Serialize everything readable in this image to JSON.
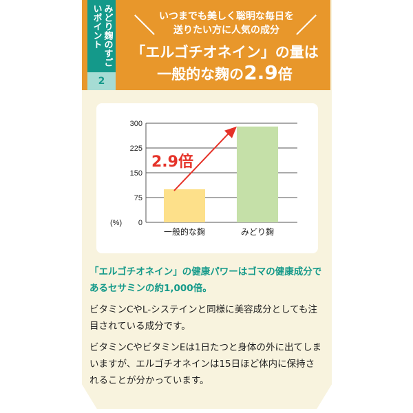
{
  "badge": {
    "label": "みどり麹のすごいポイント",
    "number": "2"
  },
  "header": {
    "subtitle_line1": "いつまでも美しく聡明な毎日を",
    "subtitle_line2": "送りたい方に人気の成分",
    "title_line1": "「エルゴチオネイン」の量は",
    "title_line2_prefix": "一般的な麹の",
    "title_line2_number": "2.9",
    "title_line2_suffix": "倍"
  },
  "chart_data": {
    "type": "bar",
    "categories": [
      "一般的な麹",
      "みどり麹"
    ],
    "values": [
      100,
      290
    ],
    "ylabel": "(%)",
    "ylim": [
      0,
      300
    ],
    "yticks": [
      "0",
      "75",
      "150",
      "225",
      "300"
    ],
    "annotation": "2.9倍",
    "colors": [
      "#fde08a",
      "#c5e0a8"
    ],
    "arrow_color": "#e53228",
    "grid": true
  },
  "body": {
    "lead": "「エルゴチオネイン」の健康パワーはゴマの健康成分であるセサミンの約1,000倍。",
    "p1": "ビタミンCやL-システインと同様に美容成分としても注目されている成分です。",
    "p2": "ビタミンCやビタミンEは1日たつと身体の外に出てしまいますが、エルゴチオネインは15日ほど体内に保持されることが分かっています。"
  }
}
